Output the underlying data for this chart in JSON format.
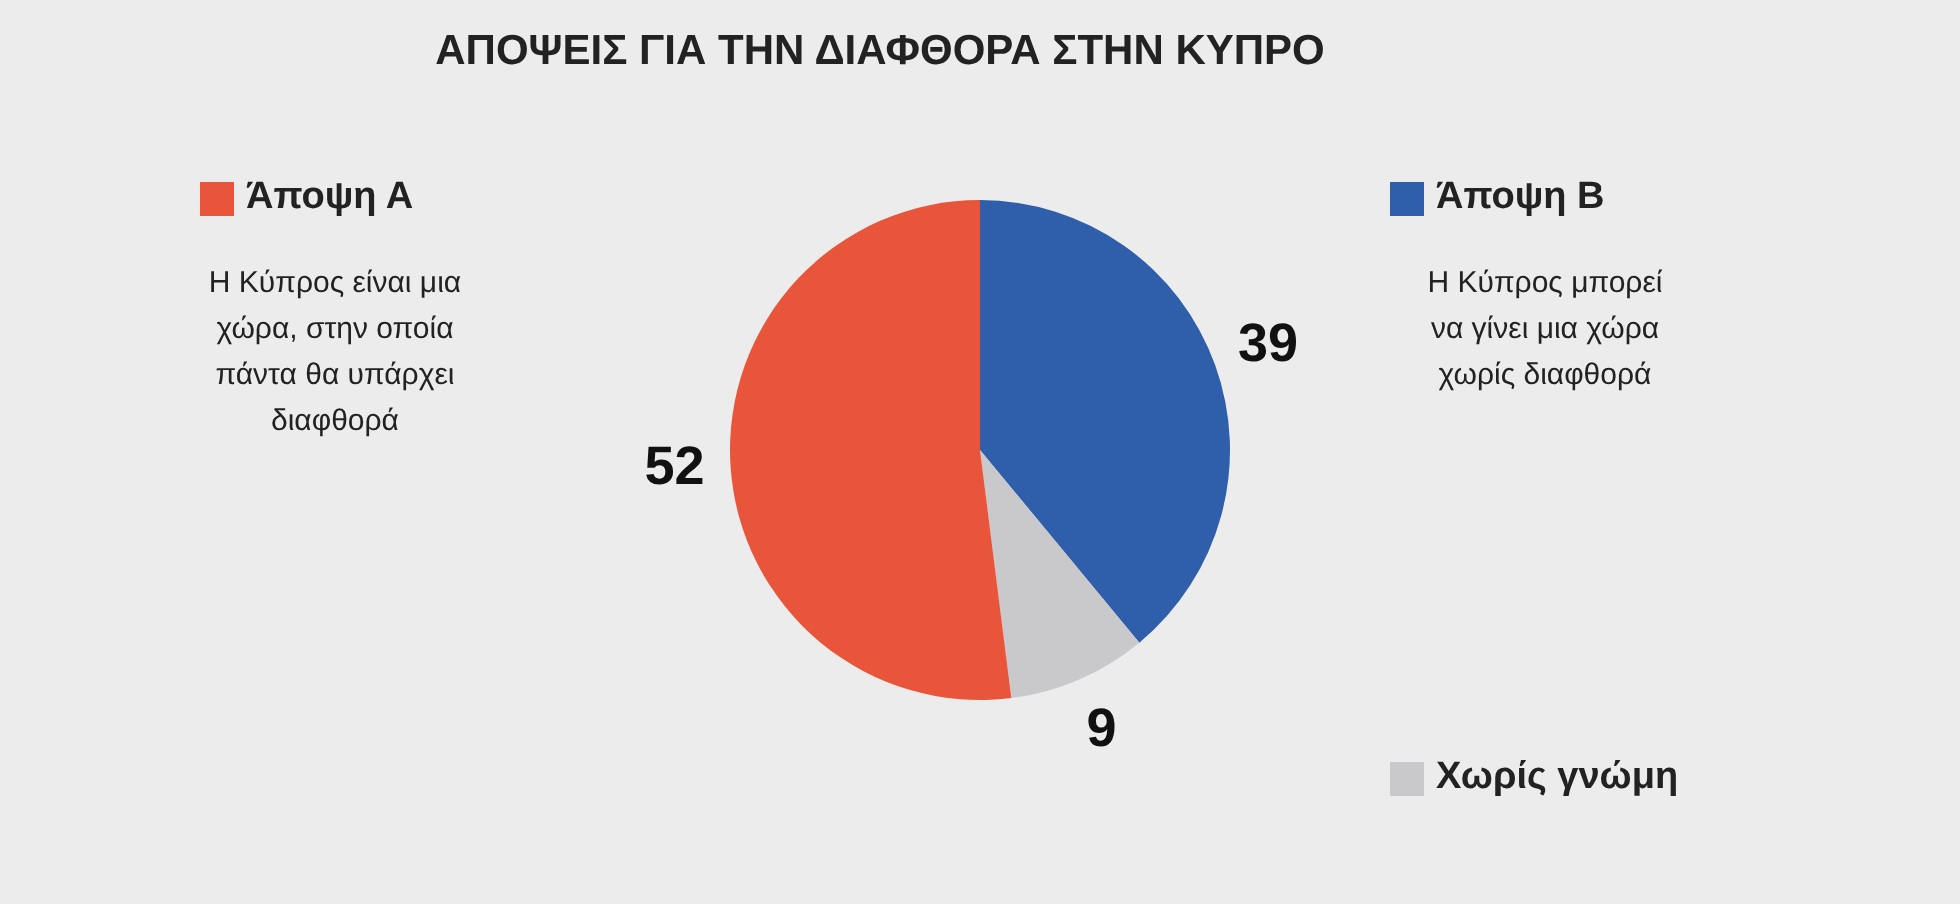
{
  "chart_data": {
    "type": "pie",
    "title": "ΑΠΟΨΕΙΣ ΓΙΑ ΤΗΝ ΔΙΑΦΘΟΡΑ ΣΤΗΝ ΚΥΠΡΟ",
    "categories": [
      "Άποψη Β",
      "Χωρίς γνώμη",
      "Άποψη Α"
    ],
    "values": [
      39,
      9,
      52
    ],
    "colors": [
      "#2f5eab",
      "#c9c9cc",
      "#e8553a"
    ],
    "data_labels": true,
    "legend": "bottom left",
    "annotations": [
      "Η Κύπρος είναι μια χώρα, στην οποία πάντα θα υπάρχει διαφθορά",
      "Η Κύπρος μπορεί να γίνει μια χώρα χωρίς διαφθορά"
    ]
  }
}
